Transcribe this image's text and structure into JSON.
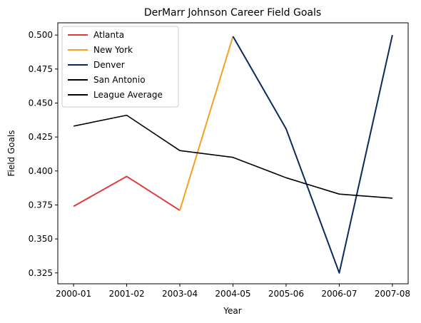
{
  "chart_data": {
    "type": "line",
    "title": "DerMarr Johnson Career Field Goals",
    "xlabel": "Year",
    "ylabel": "Field Goals",
    "categories": [
      "2000-01",
      "2001-02",
      "2003-04",
      "2004-05",
      "2005-06",
      "2006-07",
      "2007-08"
    ],
    "ylim": [
      0.317,
      0.509
    ],
    "yticks": [
      0.325,
      0.35,
      0.375,
      0.4,
      0.425,
      0.45,
      0.475,
      0.5
    ],
    "ytick_labels": [
      "0.325",
      "0.350",
      "0.375",
      "0.400",
      "0.425",
      "0.450",
      "0.475",
      "0.500"
    ],
    "grid": false,
    "legend_position": "top-left",
    "series": [
      {
        "name": "Atlanta",
        "color": "#e03c3c",
        "points": [
          [
            0,
            0.374
          ],
          [
            1,
            0.396
          ],
          [
            2,
            0.371
          ]
        ]
      },
      {
        "name": "New York",
        "color": "#f5a020",
        "points": [
          [
            2,
            0.371
          ],
          [
            3,
            0.499
          ]
        ]
      },
      {
        "name": "Denver",
        "color": "#0b2a5b",
        "points": [
          [
            3,
            0.499
          ],
          [
            4,
            0.431
          ],
          [
            5,
            0.325
          ],
          [
            6,
            0.5
          ]
        ]
      },
      {
        "name": "San Antonio",
        "color": "#000000",
        "points": []
      },
      {
        "name": "League Average",
        "color": "#000000",
        "points": [
          [
            0,
            0.433
          ],
          [
            1,
            0.441
          ],
          [
            2,
            0.415
          ],
          [
            3,
            0.41
          ],
          [
            4,
            0.395
          ],
          [
            5,
            0.383
          ],
          [
            6,
            0.38
          ]
        ]
      }
    ]
  }
}
